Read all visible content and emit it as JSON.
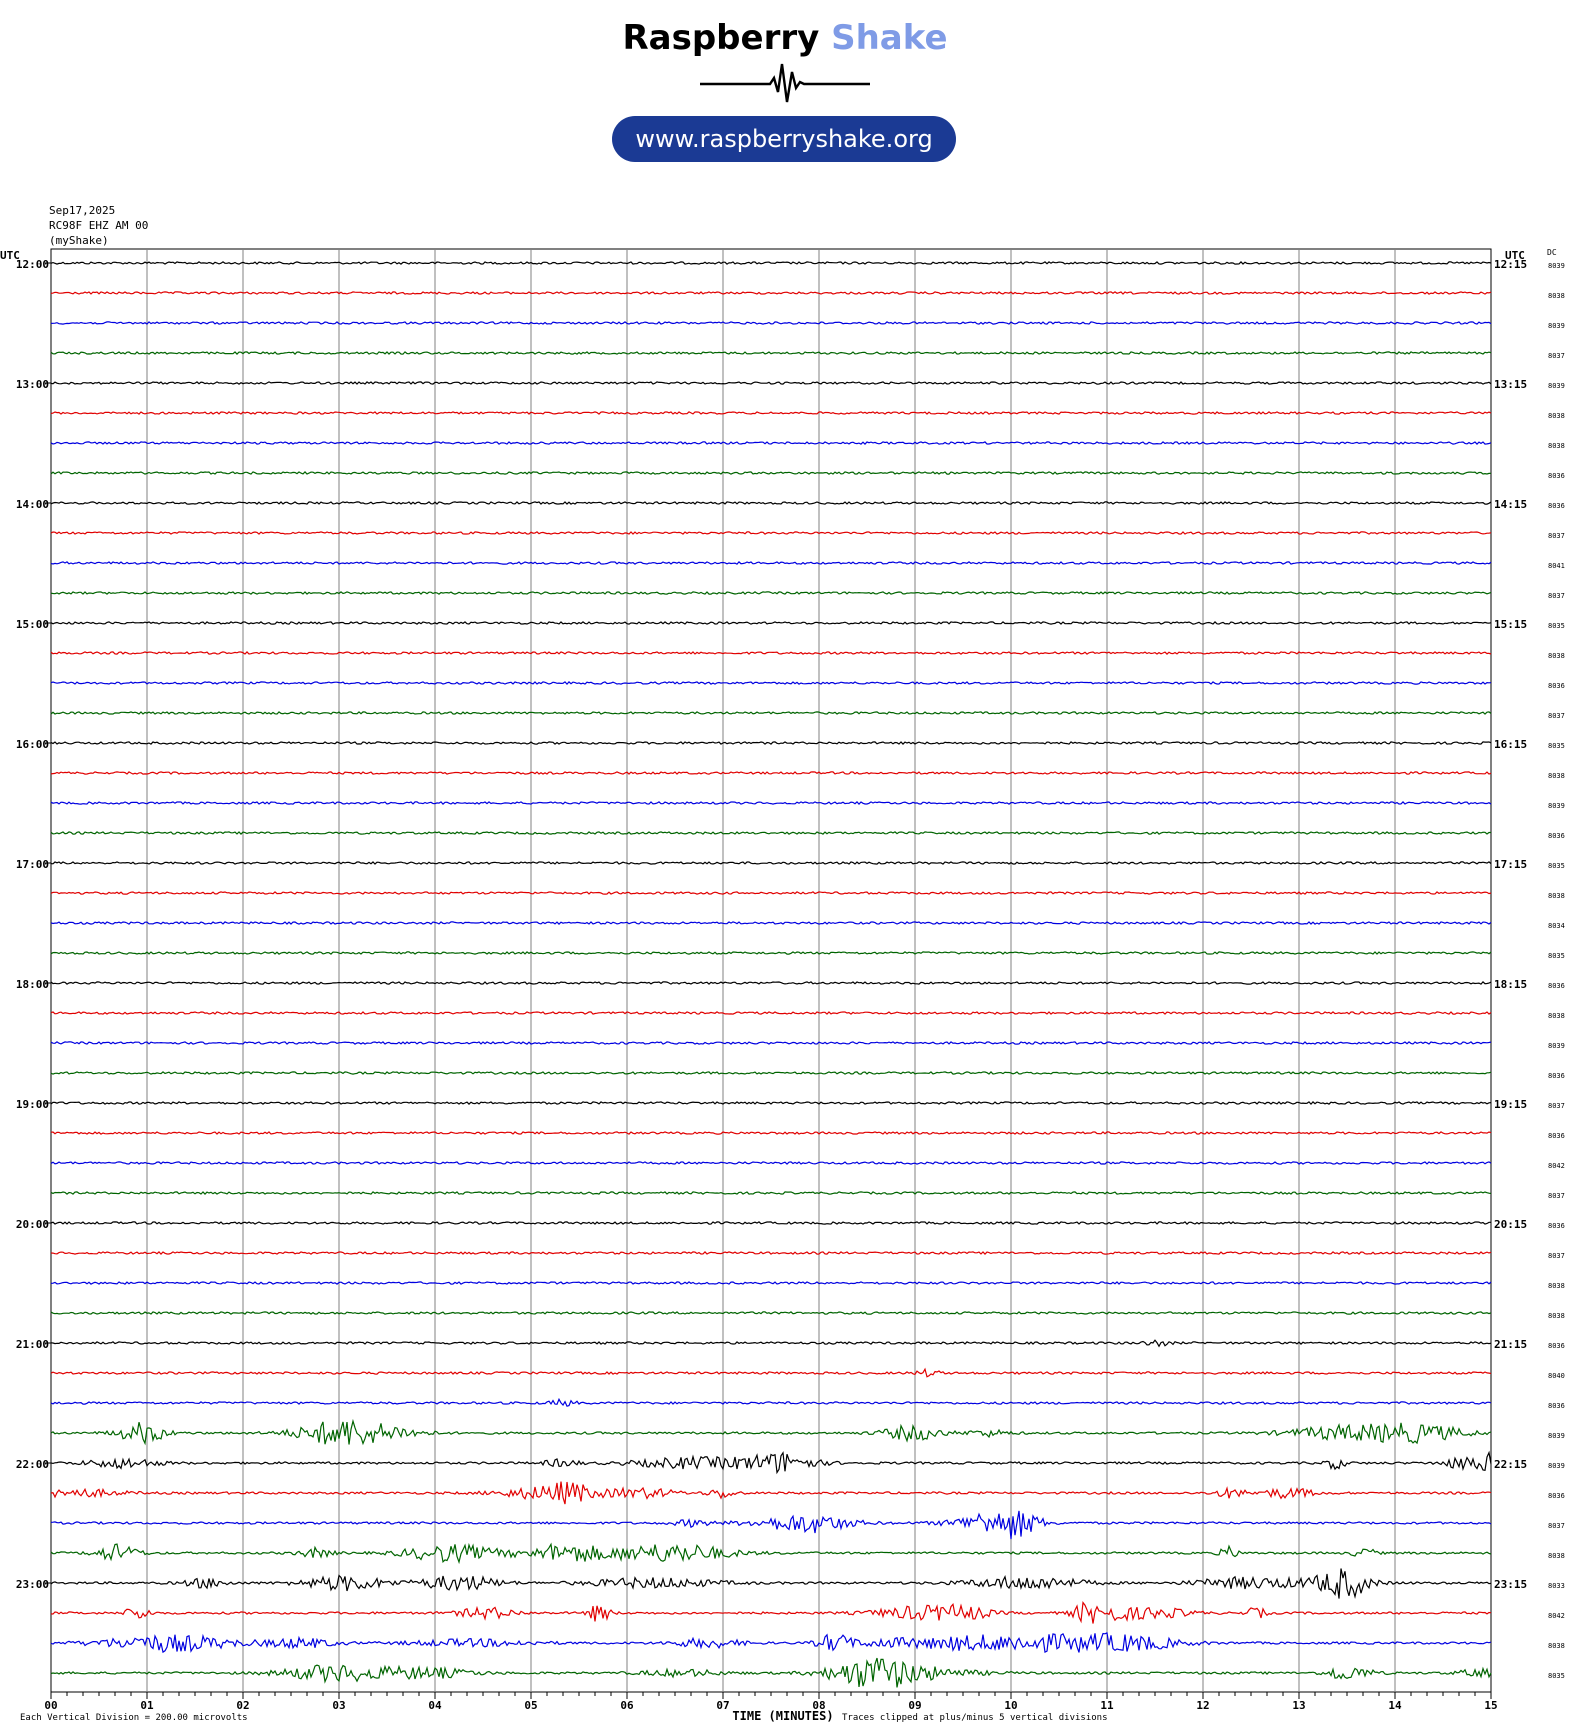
{
  "brand": {
    "title_part1": "Raspberry",
    "title_part2": "Shake",
    "url": "www.raspberryshake.org",
    "accent_color": "#7f9be6",
    "url_bg_color": "#1b3a94"
  },
  "header": {
    "date": "Sep17,2025",
    "station": "RC98F EHZ AM 00",
    "source": "(myShake)"
  },
  "left_axis_label": "UTC",
  "right_axis_label": "UTC",
  "dc_label": "DC",
  "footer": {
    "scale_note": "Each Vertical Division =  200.00 microvolts",
    "clip_note": "Traces clipped at plus/minus 5 vertical divisions"
  },
  "chart_data": {
    "type": "line",
    "xlabel": "TIME (MINUTES)",
    "xlim": [
      0,
      15
    ],
    "x_ticks": [
      "00",
      "01",
      "02",
      "03",
      "04",
      "05",
      "06",
      "07",
      "08",
      "09",
      "10",
      "11",
      "12",
      "13",
      "14",
      "15"
    ],
    "trace_colors": [
      "#000000",
      "#e00000",
      "#0000e0",
      "#006400"
    ],
    "left_time_labels": [
      "12:00",
      "13:00",
      "14:00",
      "15:00",
      "16:00",
      "17:00",
      "18:00",
      "19:00",
      "20:00",
      "21:00",
      "22:00",
      "23:00"
    ],
    "right_time_labels": [
      "12:15",
      "13:15",
      "14:15",
      "15:15",
      "16:15",
      "17:15",
      "18:15",
      "19:15",
      "20:15",
      "21:15",
      "22:15",
      "23:15"
    ],
    "dc_values": [
      "8039",
      "8038",
      "8039",
      "8037",
      "8039",
      "8038",
      "8038",
      "8036",
      "8036",
      "8037",
      "8041",
      "8037",
      "8035",
      "8038",
      "8036",
      "8037",
      "8035",
      "8038",
      "8039",
      "8036",
      "8035",
      "8038",
      "8034",
      "8035",
      "8036",
      "8038",
      "8039",
      "8036",
      "8037",
      "8036",
      "8042",
      "8037",
      "8036",
      "8037",
      "8038",
      "8038",
      "8036",
      "8040",
      "8036",
      "8039",
      "8039",
      "8036",
      "8037",
      "8038",
      "8033",
      "8042",
      "8038",
      "8035"
    ],
    "trace_activity": [
      0.2,
      0.2,
      0.2,
      0.2,
      0.2,
      0.2,
      0.2,
      0.2,
      0.2,
      0.2,
      0.2,
      0.2,
      0.2,
      0.2,
      0.2,
      0.2,
      0.2,
      0.2,
      0.2,
      0.2,
      0.2,
      0.2,
      0.2,
      0.2,
      0.2,
      0.2,
      0.2,
      0.2,
      0.2,
      0.2,
      0.2,
      0.2,
      0.2,
      0.2,
      0.2,
      0.2,
      0.3,
      0.3,
      0.4,
      1.0,
      0.9,
      0.8,
      0.8,
      1.0,
      1.0,
      1.0,
      1.0,
      1.0
    ]
  }
}
